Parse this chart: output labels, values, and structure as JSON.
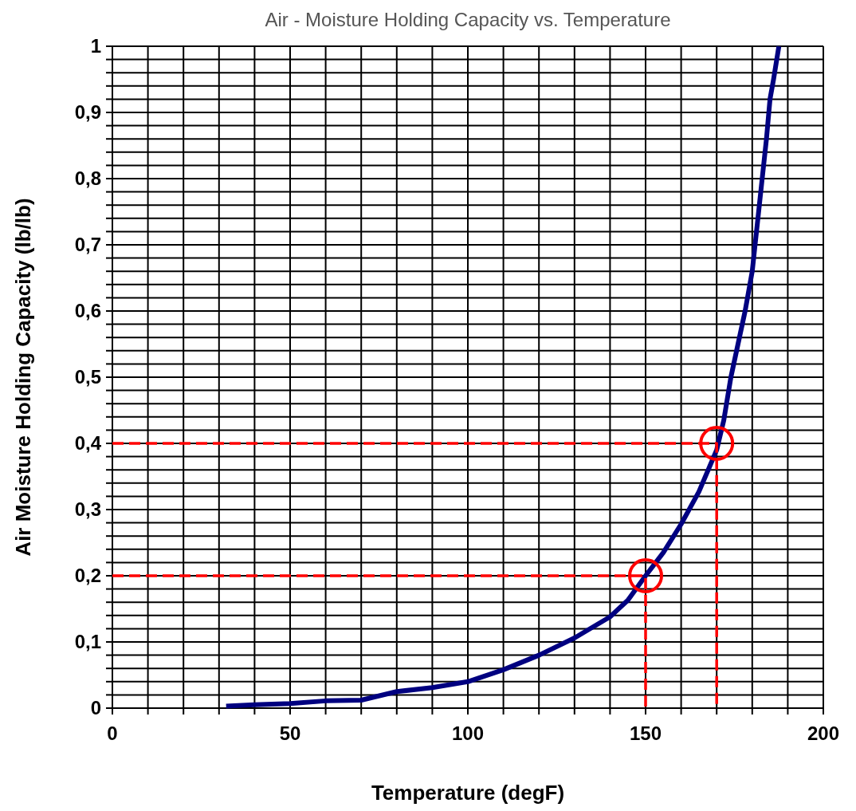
{
  "chart_data": {
    "type": "line",
    "title": "Air - Moisture Holding Capacity vs. Temperature",
    "xlabel": "Temperature (degF)",
    "ylabel": "Air Moisture Holding Capacity (lb/lb)",
    "xlim": [
      0,
      200
    ],
    "ylim": [
      0,
      1
    ],
    "xticks": [
      0,
      {
        "value": 10,
        "label": null
      },
      {
        "value": 20,
        "label": null
      },
      {
        "value": 30,
        "label": null
      },
      {
        "value": 40,
        "label": null
      },
      50,
      {
        "value": 60,
        "label": null
      },
      {
        "value": 70,
        "label": null
      },
      {
        "value": 80,
        "label": null
      },
      {
        "value": 90,
        "label": null
      },
      100,
      {
        "value": 110,
        "label": null
      },
      {
        "value": 120,
        "label": null
      },
      {
        "value": 130,
        "label": null
      },
      {
        "value": 140,
        "label": null
      },
      150,
      {
        "value": 160,
        "label": null
      },
      {
        "value": 170,
        "label": null
      },
      {
        "value": 180,
        "label": null
      },
      {
        "value": 190,
        "label": null
      },
      200
    ],
    "yticks": [
      0,
      {
        "value": 0.02,
        "label": null
      },
      {
        "value": 0.04,
        "label": null
      },
      {
        "value": 0.06,
        "label": null
      },
      {
        "value": 0.08,
        "label": null
      },
      {
        "value": 0.1,
        "label": "0,1"
      },
      {
        "value": 0.12,
        "label": null
      },
      {
        "value": 0.14,
        "label": null
      },
      {
        "value": 0.16,
        "label": null
      },
      {
        "value": 0.18,
        "label": null
      },
      {
        "value": 0.2,
        "label": "0,2"
      },
      {
        "value": 0.22,
        "label": null
      },
      {
        "value": 0.24,
        "label": null
      },
      {
        "value": 0.26,
        "label": null
      },
      {
        "value": 0.28,
        "label": null
      },
      {
        "value": 0.3,
        "label": "0,3"
      },
      {
        "value": 0.32,
        "label": null
      },
      {
        "value": 0.34,
        "label": null
      },
      {
        "value": 0.36,
        "label": null
      },
      {
        "value": 0.38,
        "label": null
      },
      {
        "value": 0.4,
        "label": "0,4"
      },
      {
        "value": 0.42,
        "label": null
      },
      {
        "value": 0.44,
        "label": null
      },
      {
        "value": 0.46,
        "label": null
      },
      {
        "value": 0.48,
        "label": null
      },
      {
        "value": 0.5,
        "label": "0,5"
      },
      {
        "value": 0.52,
        "label": null
      },
      {
        "value": 0.54,
        "label": null
      },
      {
        "value": 0.56,
        "label": null
      },
      {
        "value": 0.58,
        "label": null
      },
      {
        "value": 0.6,
        "label": "0,6"
      },
      {
        "value": 0.62,
        "label": null
      },
      {
        "value": 0.64,
        "label": null
      },
      {
        "value": 0.66,
        "label": null
      },
      {
        "value": 0.68,
        "label": null
      },
      {
        "value": 0.7,
        "label": "0,7"
      },
      {
        "value": 0.72,
        "label": null
      },
      {
        "value": 0.74,
        "label": null
      },
      {
        "value": 0.76,
        "label": null
      },
      {
        "value": 0.78,
        "label": null
      },
      {
        "value": 0.8,
        "label": "0,8"
      },
      {
        "value": 0.82,
        "label": null
      },
      {
        "value": 0.84,
        "label": null
      },
      {
        "value": 0.86,
        "label": null
      },
      {
        "value": 0.88,
        "label": null
      },
      {
        "value": 0.9,
        "label": "0,9"
      },
      {
        "value": 0.92,
        "label": null
      },
      {
        "value": 0.94,
        "label": null
      },
      {
        "value": 0.96,
        "label": null
      },
      {
        "value": 0.98,
        "label": null
      },
      1
    ],
    "grid": true,
    "series": [
      {
        "color": "#000080",
        "x": [
          32,
          40,
          50,
          60,
          70,
          80,
          90,
          100,
          110,
          120,
          130,
          140,
          145,
          150,
          155,
          160,
          165,
          170,
          172,
          174,
          176,
          178,
          180,
          182,
          184,
          185,
          186,
          187.5
        ],
        "values": [
          0.003,
          0.005,
          0.007,
          0.011,
          0.012,
          0.025,
          0.031,
          0.04,
          0.058,
          0.08,
          0.106,
          0.138,
          0.163,
          0.2,
          0.235,
          0.278,
          0.327,
          0.39,
          0.435,
          0.5,
          0.55,
          0.6,
          0.66,
          0.76,
          0.86,
          0.92,
          0.95,
          1
        ]
      },
      {
        "color": "#ff0000",
        "line_style": "dashed",
        "x": [
          0,
          150,
          150
        ],
        "values": [
          0.2,
          0.2,
          0
        ]
      },
      {
        "color": "#ff0000",
        "line_style": "dashed",
        "x": [
          0,
          170,
          170
        ],
        "values": [
          0.4,
          0.4,
          0
        ]
      },
      {
        "type": "scatter",
        "marker": "circle",
        "color": "#ff0000",
        "x": [
          150,
          170
        ],
        "values": [
          0.2,
          0.4
        ]
      }
    ]
  }
}
